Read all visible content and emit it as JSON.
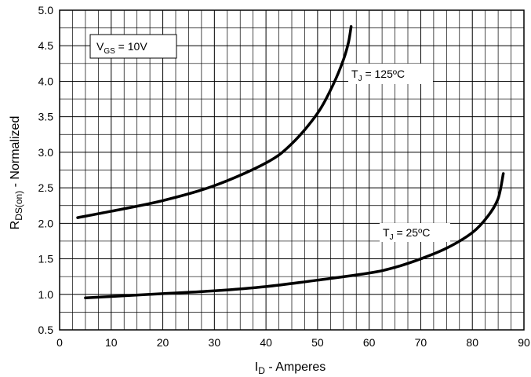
{
  "chart_data": {
    "type": "line",
    "title": "",
    "xlabel": {
      "main": "I",
      "sub": "D",
      "rest": " - Amperes"
    },
    "ylabel": {
      "main": "R",
      "sub": "DS(on)",
      "rest": " - Normalized"
    },
    "xlim": [
      0,
      90
    ],
    "ylim": [
      0.5,
      5.0
    ],
    "x_ticks": [
      0,
      10,
      20,
      30,
      40,
      50,
      60,
      70,
      80,
      90
    ],
    "y_ticks": [
      0.5,
      1.0,
      1.5,
      2.0,
      2.5,
      3.0,
      3.5,
      4.0,
      4.5,
      5.0
    ],
    "x_tick_labels": [
      "0",
      "10",
      "20",
      "30",
      "40",
      "50",
      "60",
      "70",
      "80",
      "90"
    ],
    "y_tick_labels": [
      "0.5",
      "1.0",
      "1.5",
      "2.0",
      "2.5",
      "3.0",
      "3.5",
      "4.0",
      "4.5",
      "5.0"
    ],
    "grid": true,
    "annotations": {
      "vgs": {
        "main": "V",
        "sub": "GS",
        "rest": " = 10V"
      },
      "tj125": {
        "main": "T",
        "sub": "J",
        "rest": " = 125ºC"
      },
      "tj25": {
        "main": "T",
        "sub": "J",
        "rest": " = 25ºC"
      }
    },
    "series": [
      {
        "name": "T_J = 125ºC",
        "x": [
          3.5,
          10,
          20,
          30,
          40,
          45,
          50,
          53,
          55,
          56,
          56.5
        ],
        "y": [
          2.08,
          2.17,
          2.32,
          2.53,
          2.85,
          3.12,
          3.55,
          3.95,
          4.3,
          4.55,
          4.77
        ]
      },
      {
        "name": "T_J = 25ºC",
        "x": [
          5,
          10,
          20,
          30,
          40,
          50,
          60,
          65,
          70,
          75,
          80,
          83,
          85,
          86
        ],
        "y": [
          0.95,
          0.97,
          1.01,
          1.05,
          1.11,
          1.2,
          1.3,
          1.38,
          1.5,
          1.65,
          1.87,
          2.1,
          2.35,
          2.7
        ]
      }
    ]
  }
}
